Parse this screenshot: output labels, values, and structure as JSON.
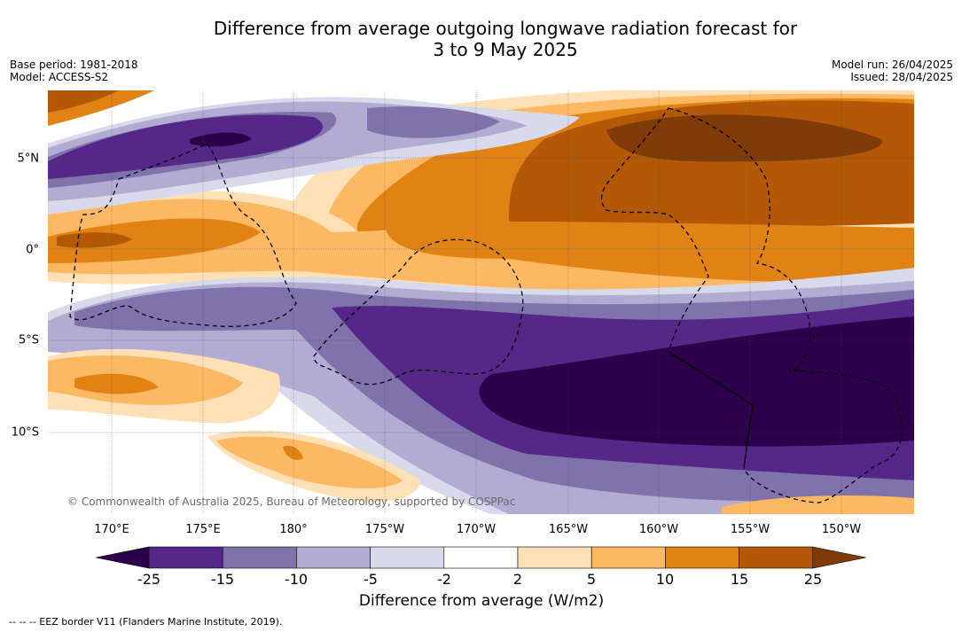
{
  "title_line1": "Difference from average outgoing longwave radiation forecast for",
  "title_line2": "3 to 9 May 2025",
  "meta_left": [
    "Base period: 1981-2018",
    "Model: ACCESS-S2"
  ],
  "meta_right": [
    "Model run: 26/04/2025",
    "Issued: 28/04/2025"
  ],
  "lat_labels": [
    "5°N",
    "0°",
    "5°S",
    "10°S"
  ],
  "lon_labels": [
    "170°E",
    "175°E",
    "180°",
    "175°W",
    "170°W",
    "165°W",
    "160°W",
    "155°W",
    "150°W"
  ],
  "colorbar": {
    "ticks": [
      "-25",
      "-15",
      "-10",
      "-5",
      "-2",
      "2",
      "5",
      "10",
      "15",
      "25"
    ],
    "colors": [
      "#2d004b",
      "#542788",
      "#8073ac",
      "#b2abd2",
      "#d8daeb",
      "#ffffff",
      "#fee0b6",
      "#fdb863",
      "#e08214",
      "#b35806",
      "#7f3b08"
    ],
    "label": "Difference from average (W/m2)"
  },
  "copyright": "© Commonwealth of Australia 2025, Bureau of Meteorology, supported by COSPPac",
  "footnote": "--  --  -- EEZ border V11 (Flanders Marine Institute, 2019)."
}
